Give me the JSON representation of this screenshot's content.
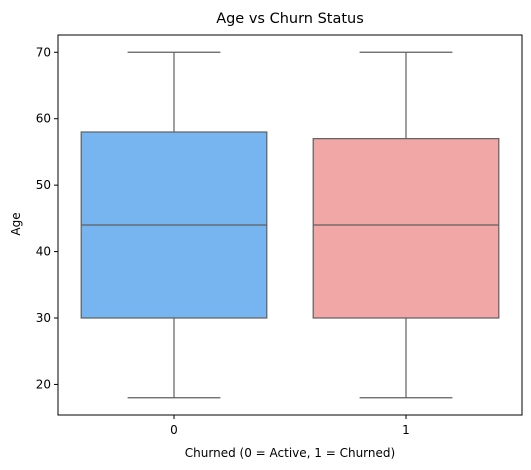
{
  "chart_data": {
    "type": "box",
    "title": "Age vs Churn Status",
    "xlabel": "Churned (0 = Active, 1 = Churned)",
    "ylabel": "Age",
    "categories": [
      "0",
      "1"
    ],
    "ylim": [
      15.4,
      72.6
    ],
    "yticks": [
      20,
      30,
      40,
      50,
      60,
      70
    ],
    "grid": false,
    "boxes": [
      {
        "category": "0",
        "min": 18,
        "q1": 30,
        "median": 44,
        "q3": 58,
        "max": 70,
        "color": "#77b5f0"
      },
      {
        "category": "1",
        "min": 18,
        "q1": 30,
        "median": 44,
        "q3": 57,
        "max": 70,
        "color": "#f2a7a7"
      }
    ],
    "line_color": "#5f5f5f"
  }
}
